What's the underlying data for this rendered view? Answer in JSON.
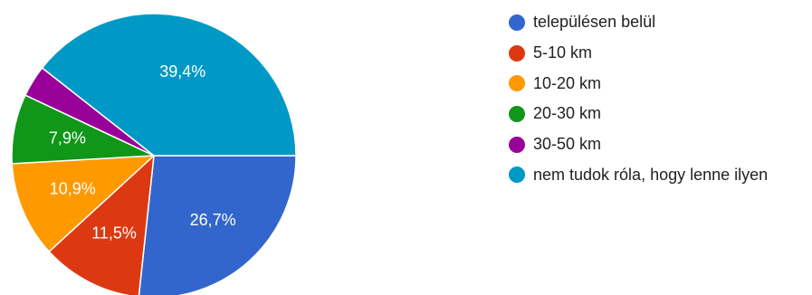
{
  "chart_data": {
    "type": "pie",
    "categories": [
      "településen belül",
      "5-10 km",
      "10-20 km",
      "20-30 km",
      "30-50 km",
      "nem tudok róla, hogy lenne ilyen"
    ],
    "values": [
      26.7,
      11.5,
      10.9,
      7.9,
      3.6,
      39.4
    ],
    "labels": [
      "26,7%",
      "11,5%",
      "10,9%",
      "7,9%",
      "",
      "39,4%"
    ],
    "colors": [
      "#3366CC",
      "#DC3912",
      "#FF9900",
      "#109618",
      "#990099",
      "#0099C6"
    ],
    "legend_position": "right",
    "start_angle": "3 o'clock, clockwise"
  }
}
